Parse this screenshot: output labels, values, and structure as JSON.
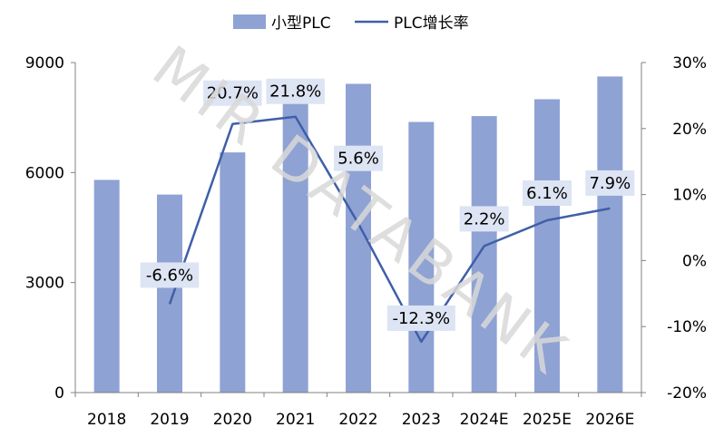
{
  "chart_data": {
    "type": "bar+line",
    "categories": [
      "2018",
      "2019",
      "2020",
      "2021",
      "2022",
      "2023",
      "2024E",
      "2025E",
      "2026E"
    ],
    "series": [
      {
        "name": "小型PLC",
        "type": "bar",
        "axis": "left",
        "color": "#8fa2d4",
        "values": [
          5800,
          5400,
          6550,
          7950,
          8420,
          7380,
          7540,
          8000,
          8620
        ]
      },
      {
        "name": "PLC增长率",
        "type": "line",
        "axis": "right",
        "color": "#3f5fa8",
        "values": [
          null,
          -6.6,
          20.7,
          21.8,
          5.6,
          -12.3,
          2.2,
          6.1,
          7.9
        ],
        "labels": [
          "",
          "-6.6%",
          "20.7%",
          "21.8%",
          "5.6%",
          "-12.3%",
          "2.2%",
          "6.1%",
          "7.9%"
        ]
      }
    ],
    "y_left": {
      "min": 0,
      "max": 9000,
      "ticks": [
        0,
        3000,
        6000,
        9000
      ],
      "tick_labels": [
        "0",
        "3000",
        "6000",
        "9000"
      ]
    },
    "y_right": {
      "min": -20,
      "max": 30,
      "ticks": [
        -20,
        -10,
        0,
        10,
        20,
        30
      ],
      "tick_labels": [
        "-20%",
        "-10%",
        "0%",
        "10%",
        "20%",
        "30%"
      ]
    },
    "legend_position": "top-center",
    "grid": false,
    "label_box_color": "#dde4f3",
    "watermark": "MIR DATABANK"
  }
}
